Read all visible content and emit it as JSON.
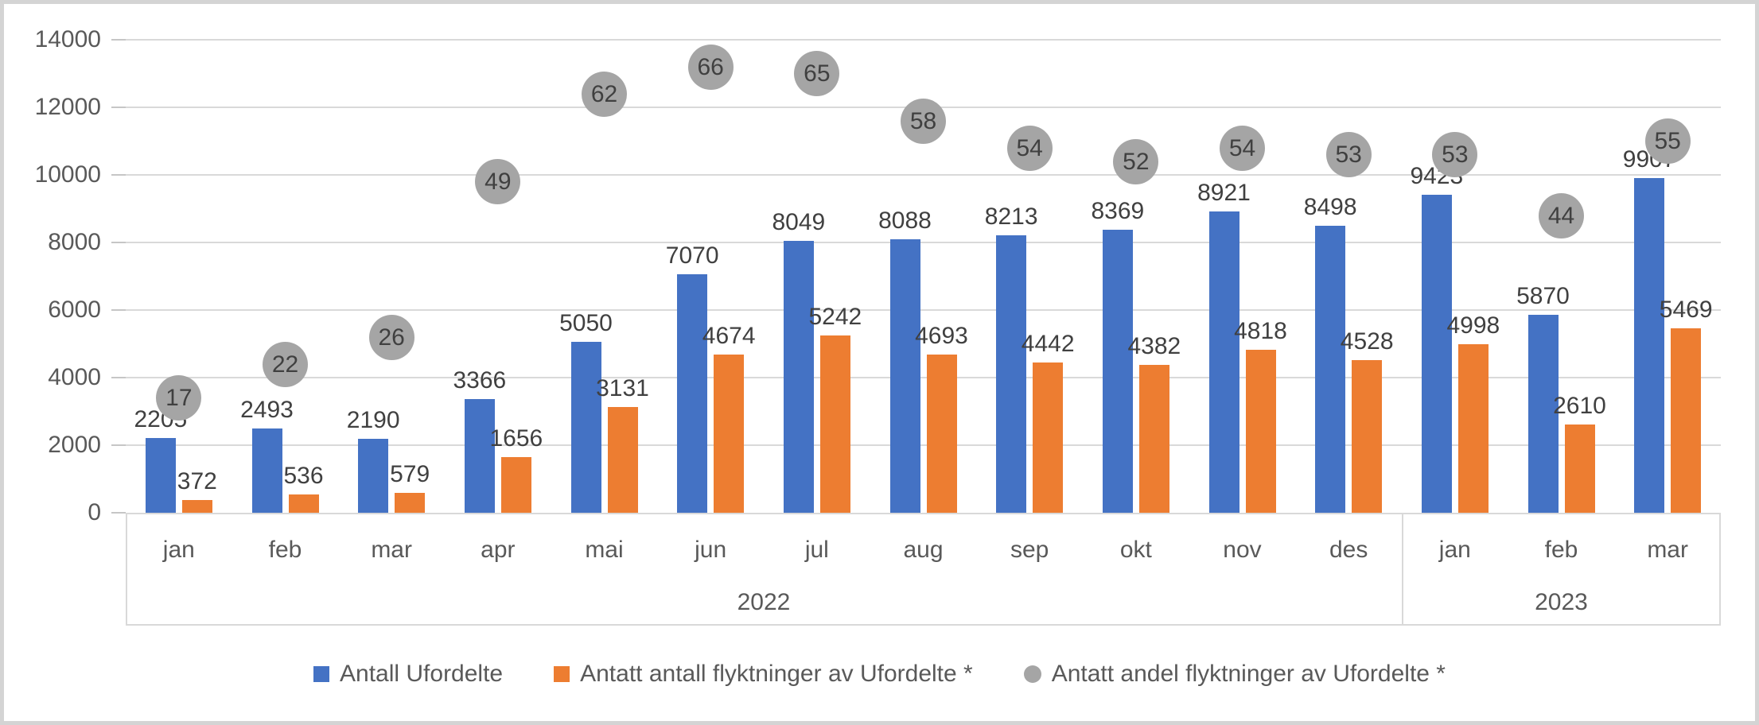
{
  "chart_data": {
    "type": "bar",
    "title": "",
    "categories": [
      "jan",
      "feb",
      "mar",
      "apr",
      "mai",
      "jun",
      "jul",
      "aug",
      "sep",
      "okt",
      "nov",
      "des",
      "jan",
      "feb",
      "mar"
    ],
    "year_groups": [
      {
        "label": "2022",
        "span": 12
      },
      {
        "label": "2023",
        "span": 3
      }
    ],
    "series": [
      {
        "name": "Antall Ufordelte",
        "type": "bar",
        "color": "#4472C4",
        "marker": "square",
        "values": [
          2205,
          2493,
          2190,
          3366,
          5050,
          7070,
          8049,
          8088,
          8213,
          8369,
          8921,
          8498,
          9423,
          5870,
          9907
        ]
      },
      {
        "name": "Antatt antall flyktninger av Ufordelte *",
        "type": "bar",
        "color": "#ED7D31",
        "marker": "square",
        "values": [
          372,
          536,
          579,
          1656,
          3131,
          4674,
          5242,
          4693,
          4442,
          4382,
          4818,
          4528,
          4998,
          2610,
          5469
        ]
      },
      {
        "name": "Antatt andel flyktninger av Ufordelte *",
        "type": "scatter",
        "color": "#A5A5A5",
        "marker": "circle",
        "axis": "secondary",
        "secondary_to_primary_factor": 200,
        "values": [
          17,
          22,
          26,
          49,
          62,
          66,
          65,
          58,
          54,
          52,
          54,
          53,
          53,
          44,
          55
        ]
      }
    ],
    "ylim": [
      0,
      14000
    ],
    "yticks": [
      0,
      2000,
      4000,
      6000,
      8000,
      10000,
      12000,
      14000
    ],
    "grid": true,
    "legend_position": "bottom",
    "colors": {
      "gridline": "#D9D9D9",
      "axis_text": "#595959",
      "data_label_text": "#404040",
      "frame_border": "#D4D4D4"
    }
  }
}
